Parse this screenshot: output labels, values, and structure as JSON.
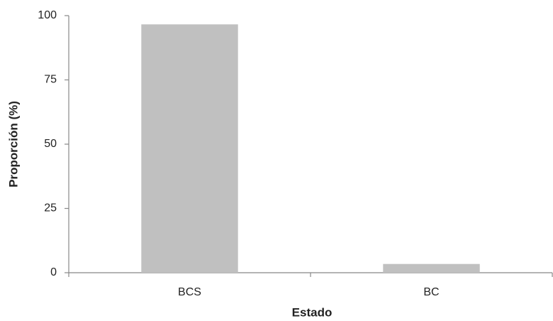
{
  "chart_data": {
    "type": "bar",
    "x_label": "Estado",
    "y_label": "Proporción (%)",
    "categories": [
      "BCS",
      "BC"
    ],
    "values": [
      96.6,
      3.4
    ],
    "color": "#c0c0c0",
    "ylim": [
      0,
      100
    ],
    "yticks": [
      0,
      25,
      50,
      75,
      100
    ],
    "grid": false
  }
}
